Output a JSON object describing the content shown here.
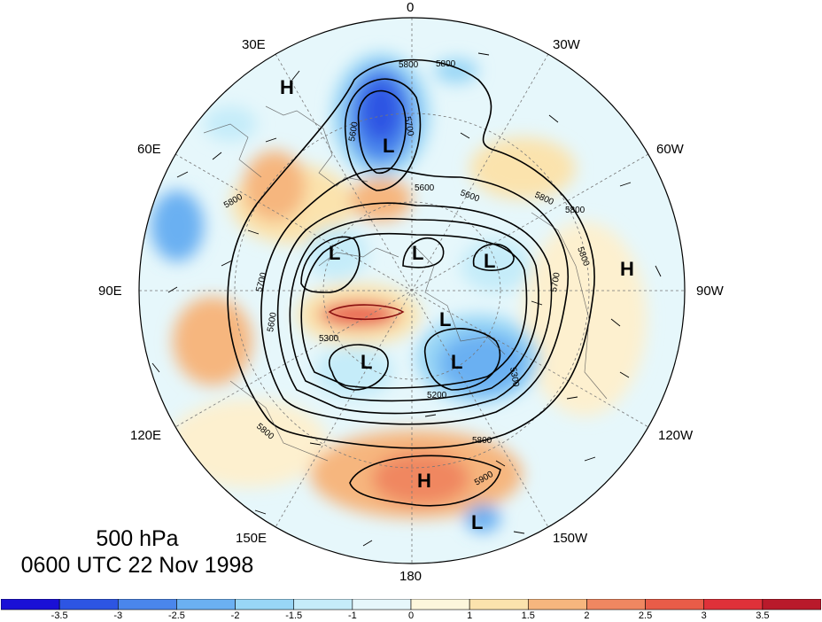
{
  "map": {
    "level": "500 hPa",
    "time": "0600 UTC 22 Nov 1998",
    "longitude_labels": [
      "0",
      "30W",
      "60W",
      "90W",
      "120W",
      "150W",
      "180",
      "150E",
      "120E",
      "90E",
      "60E",
      "30E"
    ],
    "contour_labels": [
      "5800",
      "5800",
      "5700",
      "5600",
      "5600",
      "5800",
      "5800",
      "5800",
      "5700",
      "5600",
      "5300",
      "5200",
      "5300",
      "5700",
      "5800",
      "5800",
      "5900",
      "5600",
      "5800"
    ],
    "pressure_centers": [
      {
        "label": "H",
        "where": "30E sector"
      },
      {
        "label": "L",
        "where": "North Atlantic / Scandinavia"
      },
      {
        "label": "L",
        "where": "Siberia"
      },
      {
        "label": "L",
        "where": "Arctic"
      },
      {
        "label": "L",
        "where": "Canadian Arctic"
      },
      {
        "label": "L",
        "where": "Polar"
      },
      {
        "label": "H",
        "where": "North America"
      },
      {
        "label": "L",
        "where": "East Siberia"
      },
      {
        "label": "L",
        "where": "Alaska"
      },
      {
        "label": "H",
        "where": "North Pacific"
      },
      {
        "label": "L",
        "where": "Pacific"
      }
    ],
    "colorbar": {
      "tick_labels": [
        "-3.5",
        "-3",
        "-2.5",
        "-2",
        "-1.5",
        "-1",
        "0",
        "1",
        "1.5",
        "2",
        "2.5",
        "3",
        "3.5"
      ],
      "colors": [
        "#1a10d6",
        "#2d55e3",
        "#4a86ec",
        "#6bb0f2",
        "#98d6f6",
        "#c5ecf9",
        "#e6f7fb",
        "#fdf7dc",
        "#fbe3ad",
        "#f6b67e",
        "#f08761",
        "#e95c48",
        "#df3139",
        "#b91a2b"
      ]
    }
  }
}
